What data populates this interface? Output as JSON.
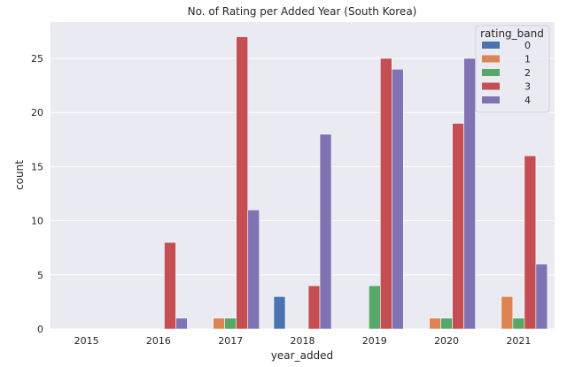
{
  "chart_data": {
    "type": "bar",
    "title": "No. of Rating per Added Year (South Korea)",
    "xlabel": "year_added",
    "ylabel": "count",
    "categories": [
      "2015",
      "2016",
      "2017",
      "2018",
      "2019",
      "2020",
      "2021"
    ],
    "ylim": [
      0,
      28.35
    ],
    "yticks": [
      0,
      5,
      10,
      15,
      20,
      25
    ],
    "grid": true,
    "legend": {
      "title": "rating_band",
      "placement": "top-right"
    },
    "series": [
      {
        "name": "0",
        "color": "#4c72b0",
        "values": [
          0,
          0,
          0,
          3,
          0,
          0,
          0
        ]
      },
      {
        "name": "1",
        "color": "#dd8452",
        "values": [
          0,
          0,
          1,
          0,
          0,
          1,
          3
        ]
      },
      {
        "name": "2",
        "color": "#55a868",
        "values": [
          0,
          0,
          1,
          0,
          4,
          1,
          1
        ]
      },
      {
        "name": "3",
        "color": "#c44e52",
        "values": [
          0,
          8,
          27,
          4,
          25,
          19,
          16
        ]
      },
      {
        "name": "4",
        "color": "#8172b3",
        "values": [
          0,
          1,
          11,
          18,
          24,
          25,
          6
        ]
      }
    ]
  },
  "colors": {
    "plot_background": "#eaeaf2",
    "grid": "#ffffff"
  }
}
